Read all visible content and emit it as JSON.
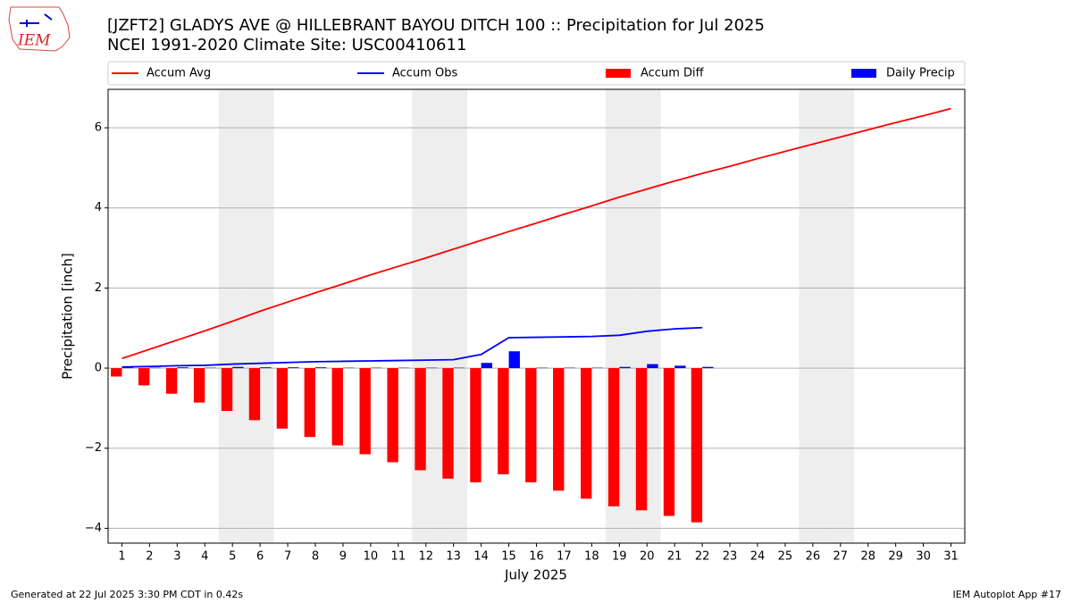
{
  "chart_data": {
    "type": "bar-line",
    "title": "[JZFT2] GLADYS AVE @ HILLEBRANT BAYOU DITCH 100 :: Precipitation for Jul 2025",
    "subtitle": "NCEI 1991-2020 Climate Site: USC00410611",
    "logo_text": "IEM",
    "xlabel": "July 2025",
    "ylabel": "Precipitation [inch]",
    "footer_left": "Generated at 22 Jul 2025 3:30 PM CDT in 0.42s",
    "footer_right": "IEM Autoplot App #17",
    "x": [
      1,
      2,
      3,
      4,
      5,
      6,
      7,
      8,
      9,
      10,
      11,
      12,
      13,
      14,
      15,
      16,
      17,
      18,
      19,
      20,
      21,
      22,
      23,
      24,
      25,
      26,
      27,
      28,
      29,
      30,
      31
    ],
    "xlim": [
      0.5,
      31.5
    ],
    "xticks": [
      1,
      2,
      3,
      4,
      5,
      6,
      7,
      8,
      9,
      10,
      11,
      12,
      13,
      14,
      15,
      16,
      17,
      18,
      19,
      20,
      21,
      22,
      23,
      24,
      25,
      26,
      27,
      28,
      29,
      30,
      31
    ],
    "ylim": [
      -4.37,
      6.96
    ],
    "yticks": [
      {
        "value": -4,
        "label": "−4"
      },
      {
        "value": -2,
        "label": "−2"
      },
      0,
      2,
      4,
      6
    ],
    "grid": true,
    "shaded_days": [
      5,
      6,
      12,
      13,
      19,
      20,
      26,
      27
    ],
    "series": [
      {
        "name": "Accum Avg",
        "kind": "line",
        "color": "#ff0000",
        "values": [
          0.24,
          0.47,
          0.7,
          0.93,
          1.17,
          1.42,
          1.65,
          1.88,
          2.1,
          2.33,
          2.54,
          2.75,
          2.97,
          3.19,
          3.41,
          3.62,
          3.84,
          4.05,
          4.27,
          4.47,
          4.67,
          4.86,
          5.04,
          5.23,
          5.41,
          5.59,
          5.77,
          5.95,
          6.13,
          6.3,
          6.48
        ]
      },
      {
        "name": "Accum Obs",
        "kind": "line",
        "color": "#0000ff",
        "values": [
          0.03,
          0.04,
          0.06,
          0.07,
          0.1,
          0.12,
          0.14,
          0.16,
          0.17,
          0.18,
          0.19,
          0.2,
          0.21,
          0.34,
          0.76,
          0.77,
          0.78,
          0.79,
          0.82,
          0.92,
          0.98,
          1.01,
          null,
          null,
          null,
          null,
          null,
          null,
          null,
          null,
          null
        ]
      },
      {
        "name": "Accum Diff",
        "kind": "bar",
        "color": "#ff0000",
        "values": [
          -0.21,
          -0.43,
          -0.64,
          -0.86,
          -1.07,
          -1.3,
          -1.51,
          -1.72,
          -1.93,
          -2.15,
          -2.35,
          -2.55,
          -2.76,
          -2.85,
          -2.65,
          -2.85,
          -3.06,
          -3.26,
          -3.45,
          -3.55,
          -3.69,
          -3.85,
          null,
          null,
          null,
          null,
          null,
          null,
          null,
          null,
          null
        ]
      },
      {
        "name": "Daily Precip",
        "kind": "bar",
        "color": "#0000ff",
        "values": [
          0.02,
          0.01,
          0.02,
          0.01,
          0.03,
          0.02,
          0.02,
          0.02,
          0.01,
          0.01,
          0.01,
          0.01,
          0.01,
          0.13,
          0.42,
          0.01,
          0.01,
          0.01,
          0.03,
          0.1,
          0.06,
          0.03,
          null,
          null,
          null,
          null,
          null,
          null,
          null,
          null,
          null
        ]
      }
    ]
  }
}
